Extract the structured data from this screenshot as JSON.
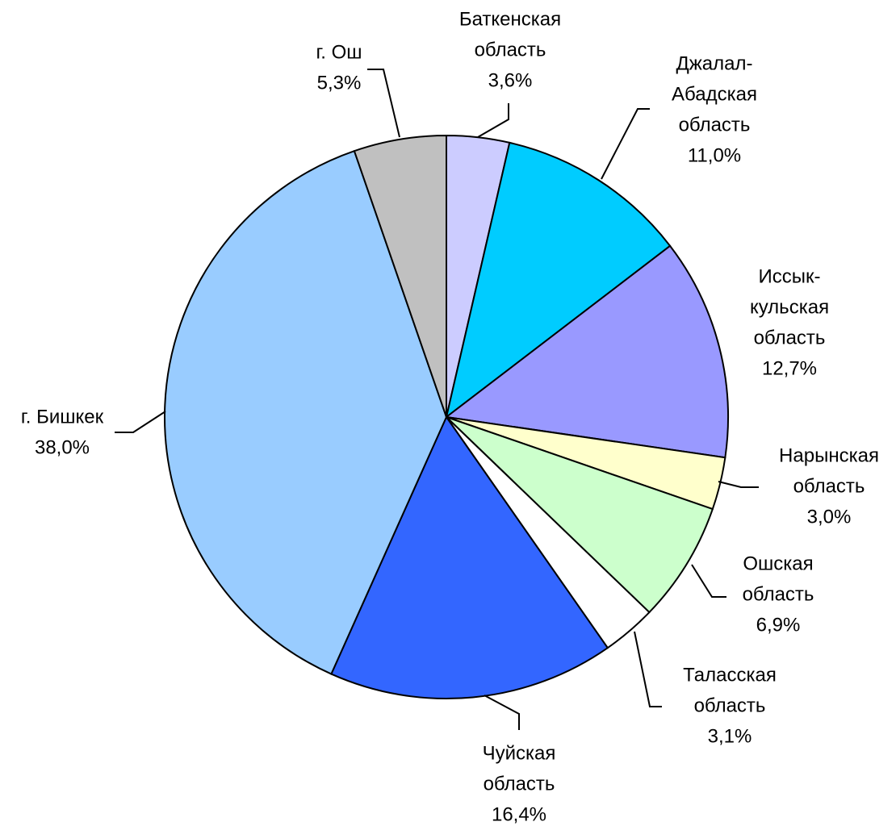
{
  "chart_data": {
    "type": "pie",
    "categories": [
      [
        "Баткенская",
        "область"
      ],
      [
        "Джалал-",
        "Абадская",
        "область"
      ],
      [
        "Иссык-",
        "кульская",
        "область"
      ],
      [
        "Нарынская",
        "область"
      ],
      [
        "Ошская",
        "область"
      ],
      [
        "Таласская",
        "область"
      ],
      [
        "Чуйская",
        "область"
      ],
      [
        "г. Бишкек"
      ],
      [
        "г. Ош"
      ]
    ],
    "values": [
      3.6,
      11.0,
      12.7,
      3.0,
      6.9,
      3.1,
      16.4,
      38.0,
      5.3
    ],
    "value_labels": [
      "3,6%",
      "11,0%",
      "12,7%",
      "3,0%",
      "6,9%",
      "3,1%",
      "16,4%",
      "38,0%",
      "5,3%"
    ],
    "colors": [
      "#ccccff",
      "#00ccff",
      "#9999ff",
      "#ffffcc",
      "#ccffcc",
      "#ffffff",
      "#3366ff",
      "#99ccff",
      "#c0c0c0"
    ]
  }
}
